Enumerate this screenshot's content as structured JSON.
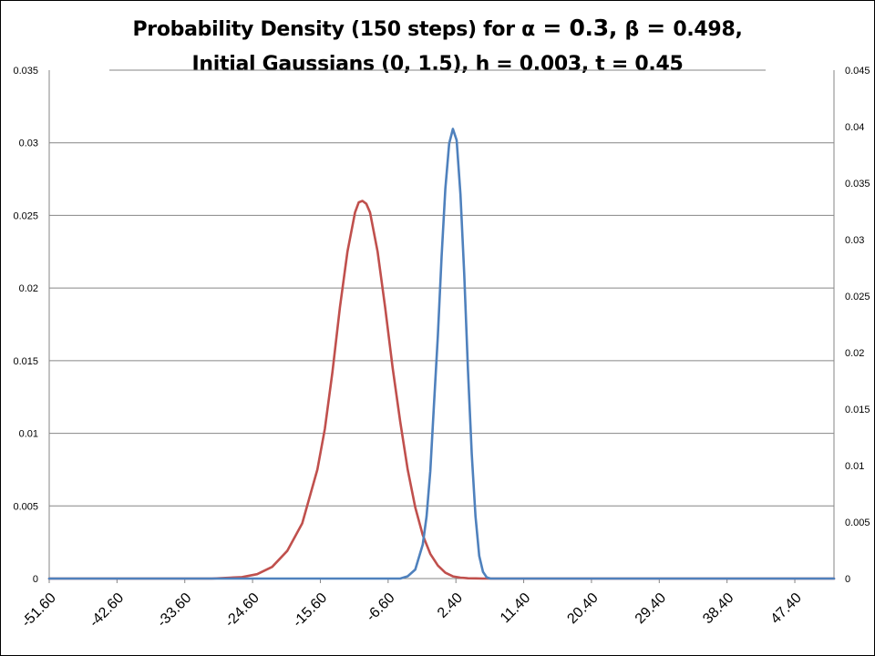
{
  "title": {
    "line1_prefix": "Probability Density (150 steps) for ",
    "alpha_sym": "α",
    "alpha_eq": " = 0.3, ",
    "beta_sym": "β",
    "beta_eq": " = ",
    "beta_val": "0.498,",
    "line2": "Initial Gaussians (0, 1.5), h = 0.003,  t = 0.45"
  },
  "chart_data": {
    "type": "line",
    "title": "Probability Density (150 steps) for α = 0.3, β = 0.498, Initial Gaussians (0, 1.5), h = 0.003,  t = 0.45",
    "xlabel": "",
    "ylabel": "",
    "x_ticks": [
      "-51.60",
      "-42.60",
      "-33.60",
      "-24.60",
      "-15.60",
      "-6.60",
      "2.40",
      "11.40",
      "20.40",
      "29.40",
      "38.40",
      "47.40"
    ],
    "xlim": [
      -51.6,
      52.6
    ],
    "y_left_ticks": [
      "0",
      "0.005",
      "0.01",
      "0.015",
      "0.02",
      "0.025",
      "0.03",
      "0.035"
    ],
    "y_left_lim": [
      0,
      0.035
    ],
    "y_right_ticks": [
      "0",
      "0.005",
      "0.01",
      "0.015",
      "0.02",
      "0.025",
      "0.03",
      "0.035",
      "0.04",
      "0.045"
    ],
    "y_right_lim": [
      0,
      0.045
    ],
    "grid": true,
    "series": [
      {
        "color": "#c0504d",
        "axis": "left",
        "x": [
          -51.6,
          -30,
          -26,
          -24,
          -22,
          -20,
          -18,
          -16,
          -15,
          -14,
          -13,
          -12,
          -11,
          -10.5,
          -10,
          -9.5,
          -9,
          -8,
          -7,
          -6,
          -5,
          -4,
          -3,
          -2,
          -1,
          0,
          1,
          2,
          3,
          4,
          5,
          6,
          8,
          52.6
        ],
        "y": [
          0,
          0,
          0.0001,
          0.0003,
          0.0008,
          0.0019,
          0.0038,
          0.0075,
          0.0103,
          0.0142,
          0.0187,
          0.0225,
          0.0252,
          0.0259,
          0.026,
          0.0258,
          0.0252,
          0.0225,
          0.0187,
          0.0145,
          0.0108,
          0.0075,
          0.0049,
          0.003,
          0.0017,
          0.0009,
          0.0004,
          0.00015,
          6e-05,
          2e-05,
          1e-05,
          0,
          0,
          0
        ]
      },
      {
        "color": "#4f81bd",
        "axis": "right",
        "x": [
          -51.6,
          -5,
          -4,
          -3,
          -2,
          -1.5,
          -1,
          -0.5,
          0,
          0.5,
          1,
          1.5,
          2,
          2.5,
          3,
          3.5,
          4,
          4.5,
          5,
          5.5,
          6,
          6.5,
          7,
          52.6
        ],
        "y": [
          0,
          0,
          0.0002,
          0.0008,
          0.003,
          0.0055,
          0.0095,
          0.0155,
          0.0215,
          0.0285,
          0.0345,
          0.0385,
          0.0398,
          0.0388,
          0.034,
          0.027,
          0.0185,
          0.011,
          0.0055,
          0.002,
          0.0006,
          0.0001,
          0,
          0
        ]
      }
    ]
  }
}
